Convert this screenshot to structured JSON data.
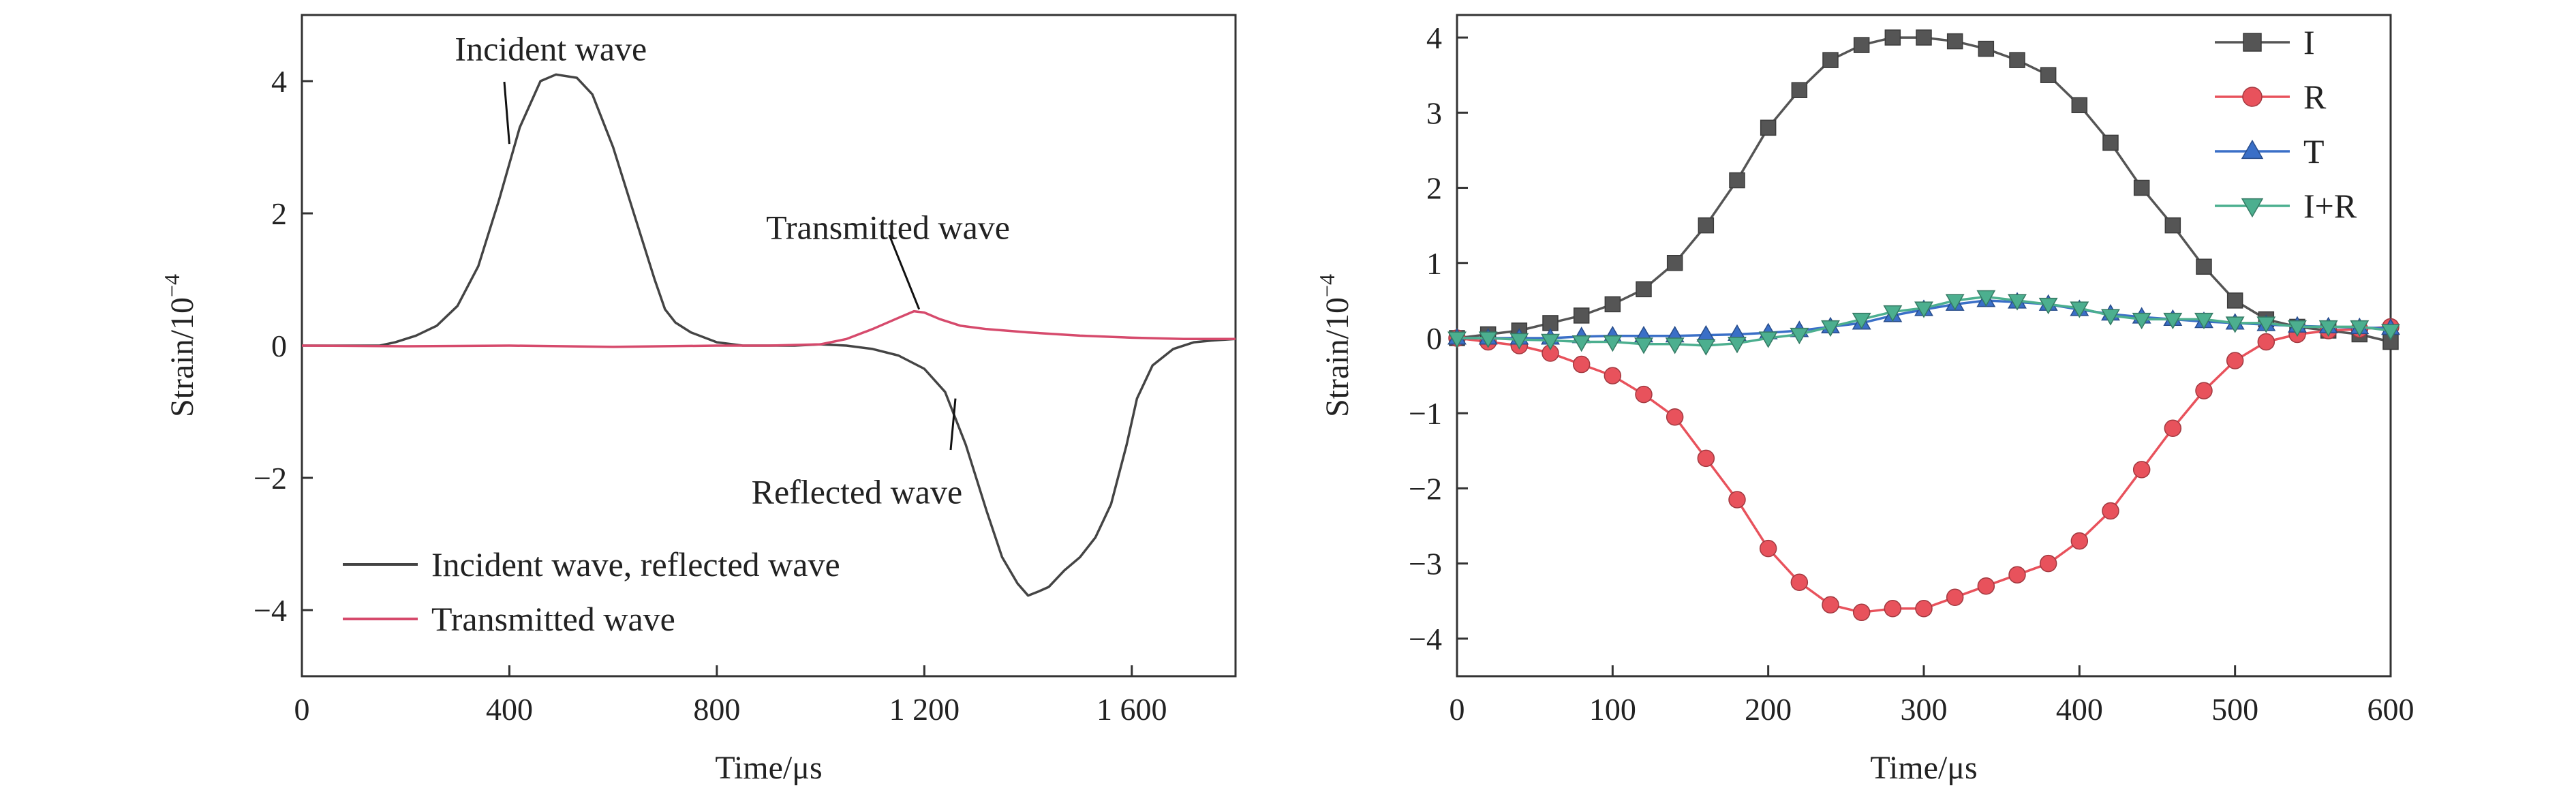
{
  "chart_data": [
    {
      "type": "line",
      "xlabel": "Time/μs",
      "ylabel_main": "Strain/10",
      "ylabel_sup": "−4",
      "xlim": [
        0,
        1800
      ],
      "ylim": [
        -5,
        5
      ],
      "xticks": [
        0,
        400,
        800,
        1200,
        1600
      ],
      "xtick_labels": [
        "0",
        "400",
        "800",
        "1 200",
        "1 600"
      ],
      "yticks": [
        4,
        2,
        0,
        -2,
        -4
      ],
      "ytick_labels": [
        "4",
        "2",
        "0",
        "−2",
        "−4"
      ],
      "legend_position": "bottom-left",
      "series": [
        {
          "name": "Incident wave, reflected wave",
          "color": "#444444",
          "x": [
            0,
            150,
            180,
            220,
            260,
            300,
            340,
            380,
            420,
            460,
            490,
            530,
            560,
            600,
            640,
            680,
            700,
            720,
            750,
            800,
            850,
            900,
            950,
            1000,
            1050,
            1100,
            1150,
            1200,
            1240,
            1280,
            1320,
            1350,
            1380,
            1400,
            1420,
            1440,
            1470,
            1500,
            1530,
            1560,
            1590,
            1610,
            1640,
            1680,
            1720,
            1760,
            1800
          ],
          "y": [
            0.0,
            0.0,
            0.05,
            0.15,
            0.3,
            0.6,
            1.2,
            2.2,
            3.3,
            4.0,
            4.1,
            4.05,
            3.8,
            3.0,
            2.0,
            1.0,
            0.55,
            0.35,
            0.2,
            0.05,
            0.0,
            0.0,
            0.0,
            0.02,
            0.0,
            -0.05,
            -0.15,
            -0.35,
            -0.7,
            -1.5,
            -2.5,
            -3.2,
            -3.6,
            -3.78,
            -3.72,
            -3.65,
            -3.4,
            -3.2,
            -2.9,
            -2.4,
            -1.5,
            -0.8,
            -0.3,
            -0.05,
            0.05,
            0.08,
            0.1
          ]
        },
        {
          "name": "Transmitted wave",
          "color": "#d64a6c",
          "x": [
            0,
            200,
            400,
            600,
            800,
            900,
            1000,
            1050,
            1100,
            1150,
            1180,
            1200,
            1230,
            1270,
            1320,
            1400,
            1500,
            1600,
            1700,
            1800
          ],
          "y": [
            0.0,
            -0.01,
            0.0,
            -0.02,
            0.0,
            0.0,
            0.02,
            0.1,
            0.25,
            0.42,
            0.52,
            0.5,
            0.4,
            0.3,
            0.25,
            0.2,
            0.15,
            0.12,
            0.1,
            0.1
          ]
        }
      ],
      "annotations": [
        {
          "text": "Incident wave",
          "x": 480,
          "y": 4.5,
          "target": [
            400,
            3.05
          ]
        },
        {
          "text": "Transmitted wave",
          "x": 1130,
          "y": 1.8,
          "target": [
            1190,
            0.55
          ]
        },
        {
          "text": "Reflected wave",
          "x": 1070,
          "y": -2.2,
          "target": [
            1260,
            -0.8
          ]
        }
      ]
    },
    {
      "type": "line",
      "xlabel": "Time/μs",
      "ylabel_main": "Strain/10",
      "ylabel_sup": "−4",
      "xlim": [
        0,
        600
      ],
      "ylim": [
        -4.5,
        4.3
      ],
      "xticks": [
        0,
        100,
        200,
        300,
        400,
        500,
        600
      ],
      "xtick_labels": [
        "0",
        "100",
        "200",
        "300",
        "400",
        "500",
        "600"
      ],
      "yticks": [
        4,
        3,
        2,
        1,
        0,
        -1,
        -2,
        -3,
        -4
      ],
      "ytick_labels": [
        "4",
        "3",
        "2",
        "1",
        "0",
        "−1",
        "−2",
        "−3",
        "−4"
      ],
      "legend_position": "top-right",
      "x": [
        0,
        20,
        40,
        60,
        80,
        100,
        120,
        140,
        160,
        180,
        200,
        220,
        240,
        260,
        280,
        300,
        320,
        340,
        360,
        380,
        400,
        420,
        440,
        460,
        480,
        500,
        520,
        540,
        560,
        580,
        600
      ],
      "series": [
        {
          "name": "I",
          "color": "#555555",
          "marker": "square",
          "y": [
            0.0,
            0.05,
            0.1,
            0.2,
            0.3,
            0.45,
            0.65,
            1.0,
            1.5,
            2.1,
            2.8,
            3.3,
            3.7,
            3.9,
            4.0,
            4.0,
            3.95,
            3.85,
            3.7,
            3.5,
            3.1,
            2.6,
            2.0,
            1.5,
            0.95,
            0.5,
            0.25,
            0.15,
            0.1,
            0.05,
            -0.05
          ]
        },
        {
          "name": "R",
          "color": "#e8525c",
          "marker": "circle",
          "y": [
            0.0,
            -0.05,
            -0.1,
            -0.2,
            -0.35,
            -0.5,
            -0.75,
            -1.05,
            -1.6,
            -2.15,
            -2.8,
            -3.25,
            -3.55,
            -3.65,
            -3.6,
            -3.6,
            -3.45,
            -3.3,
            -3.15,
            -3.0,
            -2.7,
            -2.3,
            -1.75,
            -1.2,
            -0.7,
            -0.3,
            -0.05,
            0.05,
            0.1,
            0.12,
            0.15
          ]
        },
        {
          "name": "T",
          "color": "#3a6fc7",
          "marker": "triangle-up",
          "y": [
            0.0,
            0.0,
            0.0,
            0.0,
            0.02,
            0.03,
            0.03,
            0.03,
            0.04,
            0.05,
            0.07,
            0.1,
            0.15,
            0.2,
            0.3,
            0.38,
            0.45,
            0.5,
            0.48,
            0.45,
            0.38,
            0.32,
            0.28,
            0.25,
            0.22,
            0.2,
            0.18,
            0.16,
            0.15,
            0.14,
            0.13
          ]
        },
        {
          "name": "I+R",
          "color": "#4caf8f",
          "marker": "triangle-down",
          "y": [
            0.0,
            0.0,
            -0.02,
            -0.03,
            -0.05,
            -0.05,
            -0.08,
            -0.08,
            -0.1,
            -0.07,
            0.0,
            0.05,
            0.15,
            0.25,
            0.35,
            0.4,
            0.5,
            0.55,
            0.5,
            0.45,
            0.4,
            0.3,
            0.25,
            0.25,
            0.25,
            0.2,
            0.2,
            0.15,
            0.15,
            0.15,
            0.1
          ]
        }
      ]
    }
  ]
}
